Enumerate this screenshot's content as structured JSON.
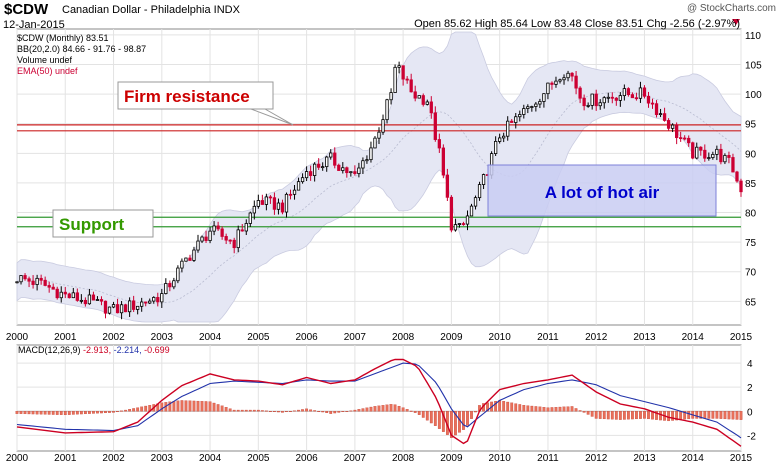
{
  "header": {
    "symbol": "$CDW",
    "description": "Canadian Dollar - Philadelphia INDX",
    "date": "12-Jan-2015",
    "ohlc_text": "Open 85.62  High 85.64  Low 83.48  Close 83.51  Chg -2.56 (-2.97%)",
    "watermark": "@ StockCharts.com"
  },
  "legend": {
    "price": "$CDW (Monthly) 83.51",
    "bb": "BB(20,2.0) 84.66 - 91.76 - 98.87",
    "volume": "Volume undef",
    "ema": "EMA(50) undef",
    "macd_label": "MACD(12,26,9)",
    "macd_v1": "-2.913,",
    "macd_v2": "-2.214,",
    "macd_v3": "-0.699"
  },
  "annotations": {
    "resistance": "Firm resistance",
    "support": "Support",
    "hot_air": "A lot of hot air"
  },
  "colors": {
    "up": "#000000",
    "down": "#cc0033",
    "band": "#e5e7f4",
    "resistance_line": "#cc2222",
    "support_line": "#339933",
    "macd_line": "#cc0022",
    "signal_line": "#2233aa",
    "hist": "#e8705a",
    "box_fill": "#c9ccf2",
    "box_text": "#0000cc"
  },
  "chart_data": [
    {
      "type": "candlestick",
      "ylim": [
        61,
        111
      ],
      "y_ticks": [
        65,
        70,
        75,
        80,
        85,
        90,
        95,
        100,
        105,
        110
      ],
      "x_ticks": [
        "2000",
        "2001",
        "2002",
        "2003",
        "2004",
        "2005",
        "2006",
        "2007",
        "2008",
        "2009",
        "2010",
        "2011",
        "2012",
        "2013",
        "2014",
        "2015"
      ],
      "resistance_levels": [
        93.8,
        94.8
      ],
      "support_levels": [
        77.6,
        79.2
      ],
      "price_anchors": {
        "x": [
          2000.0,
          2000.5,
          2001.0,
          2001.5,
          2002.0,
          2002.5,
          2003.0,
          2003.5,
          2004.0,
          2004.5,
          2005.0,
          2005.5,
          2006.0,
          2006.5,
          2007.0,
          2007.4,
          2007.75,
          2007.85,
          2008.2,
          2008.5,
          2008.75,
          2009.0,
          2009.2,
          2009.6,
          2010.0,
          2010.5,
          2011.0,
          2011.3,
          2011.5,
          2011.7,
          2012.0,
          2012.5,
          2013.0,
          2013.5,
          2014.0,
          2014.5,
          2014.8,
          2015.0
        ],
        "y": [
          69,
          68,
          66,
          65,
          63.5,
          64.5,
          66,
          72,
          77,
          75,
          82,
          81,
          87,
          89,
          86,
          92,
          100,
          105,
          100,
          99,
          90,
          78,
          77,
          84,
          93,
          97,
          101,
          104,
          103,
          99,
          99,
          100,
          100,
          95,
          90,
          90,
          88,
          83.5
        ]
      },
      "last_close": 83.51
    },
    {
      "type": "line",
      "title": "MACD(12,26,9)",
      "ylim": [
        -3.3,
        5.5
      ],
      "y_ticks": [
        -2,
        0,
        2,
        4
      ],
      "macd_anchors": {
        "x": [
          2000.0,
          2001.0,
          2002.0,
          2002.5,
          2003.0,
          2003.4,
          2004.0,
          2004.5,
          2005.0,
          2005.5,
          2006.0,
          2006.5,
          2007.0,
          2007.4,
          2007.8,
          2008.0,
          2008.3,
          2008.7,
          2009.0,
          2009.3,
          2009.6,
          2010.0,
          2010.5,
          2011.0,
          2011.5,
          2012.0,
          2012.5,
          2013.0,
          2013.5,
          2014.0,
          2014.5,
          2015.0
        ],
        "y": [
          -1.3,
          -1.8,
          -1.7,
          -0.9,
          0.9,
          2.1,
          3.1,
          2.6,
          2.5,
          2.2,
          2.8,
          2.3,
          2.6,
          3.5,
          4.3,
          4.3,
          3.7,
          1.0,
          -2.0,
          -2.8,
          0.2,
          1.8,
          2.3,
          2.6,
          3.0,
          1.6,
          0.6,
          0.2,
          -0.5,
          -0.9,
          -1.5,
          -2.9
        ]
      },
      "signal_anchors": {
        "x": [
          2000.0,
          2001.0,
          2002.0,
          2002.5,
          2003.0,
          2003.4,
          2004.0,
          2004.5,
          2005.0,
          2005.5,
          2006.0,
          2006.5,
          2007.0,
          2007.4,
          2007.8,
          2008.0,
          2008.3,
          2008.7,
          2009.0,
          2009.3,
          2009.6,
          2010.0,
          2010.5,
          2011.0,
          2011.5,
          2012.0,
          2012.5,
          2013.0,
          2013.5,
          2014.0,
          2014.5,
          2015.0
        ],
        "y": [
          -1.1,
          -1.5,
          -1.6,
          -1.2,
          0.2,
          1.2,
          2.3,
          2.5,
          2.4,
          2.3,
          2.6,
          2.5,
          2.5,
          3.1,
          3.7,
          4.0,
          3.9,
          2.3,
          0.2,
          -1.4,
          -0.4,
          0.9,
          1.8,
          2.3,
          2.6,
          2.2,
          1.3,
          0.8,
          0.3,
          -0.3,
          -0.9,
          -2.2
        ]
      },
      "last_values": {
        "macd": -2.913,
        "signal": -2.214,
        "histogram": -0.699
      }
    }
  ]
}
